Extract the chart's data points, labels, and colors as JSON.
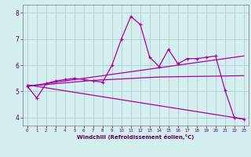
{
  "xlabel": "Windchill (Refroidissement éolien,°C)",
  "xlim": [
    -0.5,
    23.5
  ],
  "ylim": [
    3.7,
    8.3
  ],
  "yticks": [
    4,
    5,
    6,
    7,
    8
  ],
  "xticks": [
    0,
    1,
    2,
    3,
    4,
    5,
    6,
    7,
    8,
    9,
    10,
    11,
    12,
    13,
    14,
    15,
    16,
    17,
    18,
    19,
    20,
    21,
    22,
    23
  ],
  "bg_color": "#d5eef0",
  "grid_color": "#b0d5d5",
  "line_color": "#aa00aa",
  "series": [
    {
      "x": [
        0,
        1,
        2,
        3,
        4,
        5,
        6,
        7,
        8,
        9,
        10,
        11,
        12,
        13,
        14,
        15,
        16,
        17,
        18,
        19,
        20,
        21,
        22,
        23
      ],
      "y": [
        5.2,
        4.75,
        5.3,
        5.4,
        5.45,
        5.5,
        5.45,
        5.4,
        5.35,
        6.0,
        7.0,
        7.85,
        7.55,
        6.3,
        5.95,
        6.6,
        6.05,
        6.25,
        6.25,
        6.3,
        6.35,
        5.05,
        4.0,
        3.95
      ],
      "marker": "+"
    },
    {
      "x": [
        0,
        23
      ],
      "y": [
        5.2,
        6.35
      ],
      "marker": null
    },
    {
      "x": [
        0,
        7,
        14,
        23
      ],
      "y": [
        5.2,
        5.42,
        5.55,
        5.6
      ],
      "marker": null
    },
    {
      "x": [
        0,
        23
      ],
      "y": [
        5.25,
        3.95
      ],
      "marker": null
    }
  ]
}
